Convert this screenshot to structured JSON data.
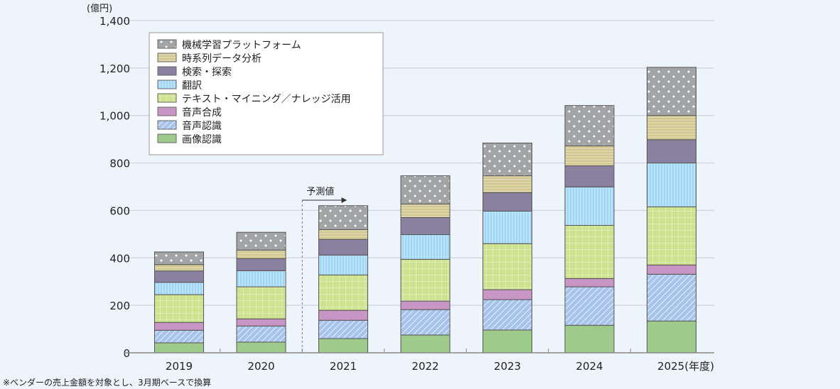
{
  "chart_data": {
    "type": "bar",
    "stacked": true,
    "ylabel": "(億円)",
    "xlabel_suffix": "(年度)",
    "ylim": [
      0,
      1400
    ],
    "yticks": [
      0,
      200,
      400,
      600,
      800,
      1000,
      1200,
      1400
    ],
    "ytick_labels": [
      "0",
      "200",
      "400",
      "600",
      "800",
      "1,000",
      "1,200",
      "1,400"
    ],
    "grid": true,
    "legend_placement": "top-left",
    "categories": [
      "2019",
      "2020",
      "2021",
      "2022",
      "2023",
      "2024",
      "2025"
    ],
    "forecast_label": "予測値",
    "forecast_from": "2021",
    "series": [
      {
        "name": "画像認識",
        "color": "#9ecb8c",
        "pattern": "solid",
        "values": [
          42,
          45,
          60,
          75,
          96,
          116,
          134
        ]
      },
      {
        "name": "音声認識",
        "color": "#a9c4ec",
        "pattern": "diagonal",
        "values": [
          53,
          68,
          77,
          107,
          128,
          162,
          197
        ]
      },
      {
        "name": "音声合成",
        "color": "#c896c4",
        "pattern": "solid",
        "values": [
          33,
          30,
          42,
          36,
          42,
          35,
          39
        ]
      },
      {
        "name": "テキスト・マイニング／ナレッジ活用",
        "color": "#cde38f",
        "pattern": "grid",
        "values": [
          117,
          135,
          149,
          176,
          194,
          224,
          245
        ]
      },
      {
        "name": "翻訳",
        "color": "#9fd6f6",
        "pattern": "vertical",
        "values": [
          52,
          68,
          84,
          104,
          137,
          162,
          185
        ]
      },
      {
        "name": "検索・探索",
        "color": "#8a80a0",
        "pattern": "solid",
        "values": [
          48,
          51,
          66,
          72,
          78,
          89,
          98
        ]
      },
      {
        "name": "時系列データ分析",
        "color": "#cfc690",
        "pattern": "horizontal",
        "values": [
          27,
          36,
          41,
          57,
          71,
          84,
          102
        ]
      },
      {
        "name": "機械学習プラットフォーム",
        "color": "#a2a4a6",
        "pattern": "dots",
        "values": [
          53,
          75,
          101,
          119,
          138,
          170,
          203
        ]
      }
    ]
  },
  "footnote": "※ベンダーの売上金額を対象とし、3月期ベースで換算"
}
